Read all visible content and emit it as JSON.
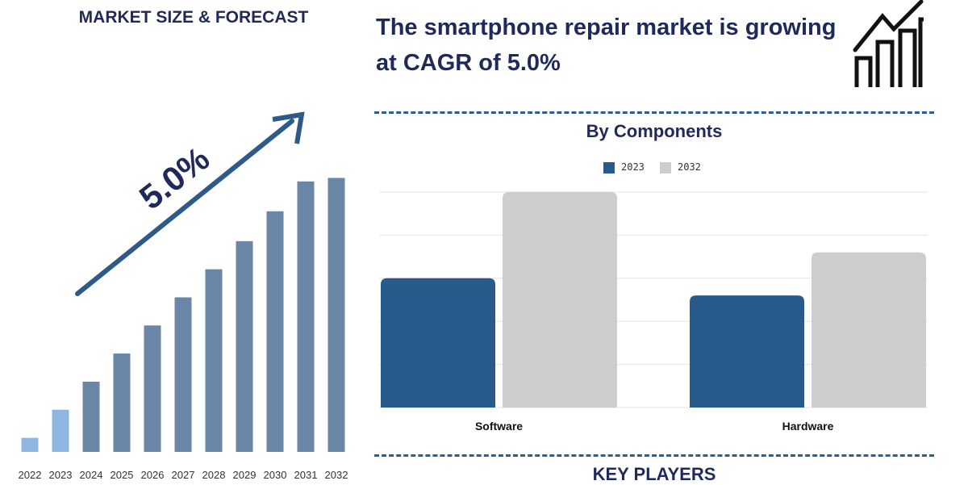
{
  "left_title": "MARKET SIZE & FORECAST",
  "headline": "The smartphone repair market is growing at CAGR of 5.0%",
  "cagr_label": "5.0%",
  "key_players": "KEY PLAYERS",
  "colors": {
    "navy": "#1f2a5a",
    "bar_blue": "#6a86a6",
    "bar_light": "#8fb6e0",
    "comp_2023": "#285a8c",
    "comp_2032": "#cdcdcd",
    "dash": "#2d5f8a"
  },
  "icon": "bar-growth-icon",
  "chart_data": [
    {
      "type": "bar",
      "title": "MARKET SIZE & FORECAST",
      "categories": [
        "2022",
        "2023",
        "2024",
        "2025",
        "2026",
        "2027",
        "2028",
        "2029",
        "2030",
        "2031",
        "2032"
      ],
      "values": [
        8,
        24,
        40,
        56,
        72,
        88,
        104,
        120,
        137,
        154,
        156
      ],
      "ylim": [
        0,
        170
      ],
      "grid": false
    },
    {
      "type": "bar",
      "title": "By Components",
      "categories": [
        "Software",
        "Hardware"
      ],
      "series": [
        {
          "name": "2023",
          "values": [
            3.0,
            2.6
          ]
        },
        {
          "name": "2032",
          "values": [
            5.0,
            3.6
          ]
        }
      ],
      "ylim": [
        0,
        5
      ],
      "legend": "top-center",
      "grid": true
    }
  ]
}
